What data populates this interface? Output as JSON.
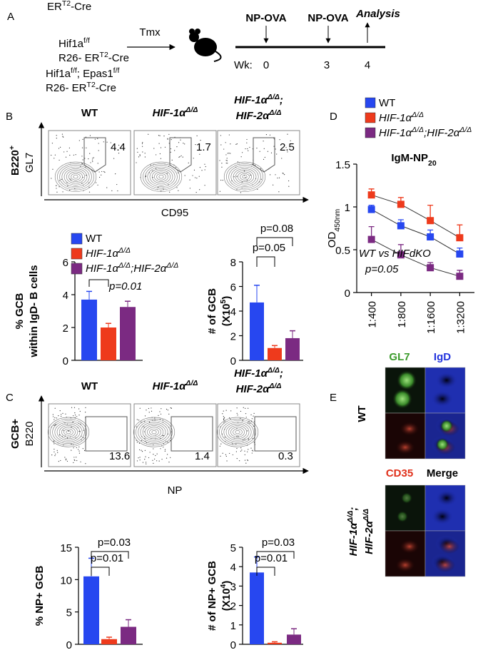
{
  "panel_labels": [
    "A",
    "B",
    "C",
    "D",
    "E"
  ],
  "timeline": {
    "strains": [
      [
        [
          {
            "text": "ER"
          },
          {
            "sup": "T2"
          },
          {
            "text": "-Cre"
          }
        ]
      ],
      [
        [
          {
            "text": "Hif1a"
          },
          {
            "sup": "f/f"
          }
        ],
        [
          {
            "text": "R26- ER"
          },
          {
            "sup": "T2"
          },
          {
            "text": "-Cre"
          }
        ]
      ],
      [
        [
          {
            "text": "Hif1a"
          },
          {
            "sup": "f/f"
          },
          {
            "text": "; Epas1"
          },
          {
            "sup": "f/f"
          }
        ],
        [
          {
            "text": "R26- ER"
          },
          {
            "sup": "T2"
          },
          {
            "text": "-Cre"
          }
        ]
      ]
    ],
    "treatment": "Tmx",
    "immunizations": [
      "NP-OVA",
      "NP-OVA"
    ],
    "analysis": "Analysis",
    "week_label": "Wk:",
    "weeks": [
      0,
      3,
      4
    ]
  },
  "flow_b": {
    "titles": [
      [
        [
          {
            "text": "WT"
          }
        ]
      ],
      [
        [
          {
            "text": "HIF-1α"
          },
          {
            "sup": "Δ/Δ"
          }
        ]
      ],
      [
        [
          {
            "text": "HIF-1α"
          },
          {
            "sup": "Δ/Δ"
          },
          {
            "text": ";"
          }
        ],
        [
          {
            "text": "HIF-2α"
          },
          {
            "sup": "Δ/Δ"
          }
        ]
      ]
    ],
    "gates": [
      4.4,
      1.7,
      2.5
    ],
    "population": [
      {
        "text": "B220"
      },
      {
        "sup": "+"
      }
    ],
    "y_label": "GL7",
    "x_label": "CD95"
  },
  "flow_c": {
    "titles": [
      [
        [
          {
            "text": "WT"
          }
        ]
      ],
      [
        [
          {
            "text": "HIF-1α"
          },
          {
            "sup": "Δ/Δ"
          }
        ]
      ],
      [
        [
          {
            "text": "HIF-1α"
          },
          {
            "sup": "Δ/Δ"
          },
          {
            "text": ";"
          }
        ],
        [
          {
            "text": "HIF-2α"
          },
          {
            "sup": "Δ/Δ"
          }
        ]
      ]
    ],
    "gates": [
      13.6,
      1.4,
      0.3
    ],
    "population": [
      {
        "text": "GCB+"
      }
    ],
    "y_label": "B220",
    "x_label": "NP"
  },
  "chart_data": [
    {
      "type": "bar",
      "y_label": [
        [
          {
            "text": "% GCB"
          }
        ],
        [
          {
            "text": "within IgD- B cells"
          }
        ]
      ],
      "ylim": [
        0,
        6
      ],
      "yticks": [
        0,
        2,
        4,
        6
      ],
      "annotations": [
        "p=0.01"
      ],
      "series": [
        {
          "name": [
            {
              "text": "WT"
            }
          ],
          "color": "#2747f0",
          "values": [
            3.7
          ],
          "errors": [
            0.5
          ]
        },
        {
          "name": [
            {
              "text": "HIF-1α"
            },
            {
              "sup": "Δ/Δ"
            }
          ],
          "color": "#ee3a1c",
          "values": [
            2.0
          ],
          "errors": [
            0.25
          ]
        },
        {
          "name": [
            {
              "text": "HIF-1α"
            },
            {
              "sup": "Δ/Δ"
            },
            {
              "text": ";HIF-2α"
            },
            {
              "sup": "Δ/Δ"
            }
          ],
          "color": "#7b2a82",
          "values": [
            3.25
          ],
          "errors": [
            0.35
          ]
        }
      ]
    },
    {
      "type": "bar",
      "y_label": [
        [
          {
            "text": "# of GCB"
          }
        ],
        [
          {
            "text": "(X10"
          },
          {
            "sup": "5"
          },
          {
            "text": ")"
          }
        ]
      ],
      "ylim": [
        0,
        8
      ],
      "yticks": [
        0,
        2,
        4,
        6,
        8
      ],
      "annotations": [
        "p=0.05",
        "p=0.08"
      ],
      "series": [
        {
          "color": "#2747f0",
          "values": [
            4.7
          ],
          "errors": [
            1.4
          ]
        },
        {
          "color": "#ee3a1c",
          "values": [
            1.0
          ],
          "errors": [
            0.2
          ]
        },
        {
          "color": "#7b2a82",
          "values": [
            1.8
          ],
          "errors": [
            0.6
          ]
        }
      ]
    },
    {
      "type": "bar",
      "y_label": [
        [
          {
            "text": "% NP+ GCB"
          }
        ]
      ],
      "ylim": [
        0,
        15
      ],
      "yticks": [
        0,
        5,
        10,
        15
      ],
      "annotations": [
        "p=0.01",
        "p=0.03"
      ],
      "series": [
        {
          "color": "#2747f0",
          "values": [
            10.5
          ],
          "errors": [
            2.8
          ]
        },
        {
          "color": "#ee3a1c",
          "values": [
            0.8
          ],
          "errors": [
            0.3
          ]
        },
        {
          "color": "#7b2a82",
          "values": [
            2.7
          ],
          "errors": [
            1.1
          ]
        }
      ]
    },
    {
      "type": "bar",
      "y_label": [
        [
          {
            "text": "# of NP+ GCB"
          }
        ],
        [
          {
            "text": "(X10"
          },
          {
            "sup": "4"
          },
          {
            "text": ")"
          }
        ]
      ],
      "ylim": [
        0,
        5
      ],
      "yticks": [
        0,
        1,
        2,
        3,
        4,
        5
      ],
      "annotations": [
        "p=0.01",
        "p=0.03"
      ],
      "series": [
        {
          "color": "#2747f0",
          "values": [
            3.7
          ],
          "errors": [
            0.8
          ]
        },
        {
          "color": "#ee3a1c",
          "values": [
            0.08
          ],
          "errors": [
            0.05
          ]
        },
        {
          "color": "#7b2a82",
          "values": [
            0.5
          ],
          "errors": [
            0.3
          ]
        }
      ]
    },
    {
      "type": "line",
      "title": [
        {
          "text": "IgM-NP"
        },
        {
          "sub": "20"
        }
      ],
      "y_label": [
        {
          "text": "OD"
        },
        {
          "sub": "450nm"
        }
      ],
      "ylim": [
        0,
        1.5
      ],
      "yticks": [
        0,
        0.5,
        1,
        1.5
      ],
      "categories": [
        "1:400",
        "1:800",
        "1:1600",
        "1:3200"
      ],
      "annotations": [
        "WT vs HIFdKO",
        "p=0.05"
      ],
      "series": [
        {
          "name": [
            {
              "text": "WT"
            }
          ],
          "color": "#2747f0",
          "values": [
            0.97,
            0.78,
            0.65,
            0.45
          ],
          "errors": [
            0.05,
            0.07,
            0.08,
            0.07
          ]
        },
        {
          "name": [
            {
              "text": "HIF-1α"
            },
            {
              "sup": "Δ/Δ"
            }
          ],
          "color": "#ee3a1c",
          "values": [
            1.14,
            1.03,
            0.84,
            0.64
          ],
          "errors": [
            0.07,
            0.08,
            0.18,
            0.15
          ]
        },
        {
          "name": [
            {
              "text": "HIF-1α"
            },
            {
              "sup": "Δ/Δ"
            },
            {
              "text": ";HIF-2α"
            },
            {
              "sup": "Δ/Δ"
            }
          ],
          "color": "#7b2a82",
          "values": [
            0.62,
            0.44,
            0.29,
            0.19
          ],
          "errors": [
            0.15,
            0.12,
            0.06,
            0.07
          ]
        }
      ]
    }
  ],
  "imaging": {
    "channels": [
      "GL7",
      "IgD",
      "CD35",
      "Merge"
    ],
    "groups": [
      [
        [
          {
            "text": "WT"
          }
        ]
      ],
      [
        [
          {
            "text": "HIF-1α"
          },
          {
            "sup": "Δ/Δ"
          },
          {
            "text": ";"
          }
        ],
        [
          {
            "text": "HIF-2α"
          },
          {
            "sup": "Δ/Δ"
          }
        ]
      ]
    ]
  }
}
